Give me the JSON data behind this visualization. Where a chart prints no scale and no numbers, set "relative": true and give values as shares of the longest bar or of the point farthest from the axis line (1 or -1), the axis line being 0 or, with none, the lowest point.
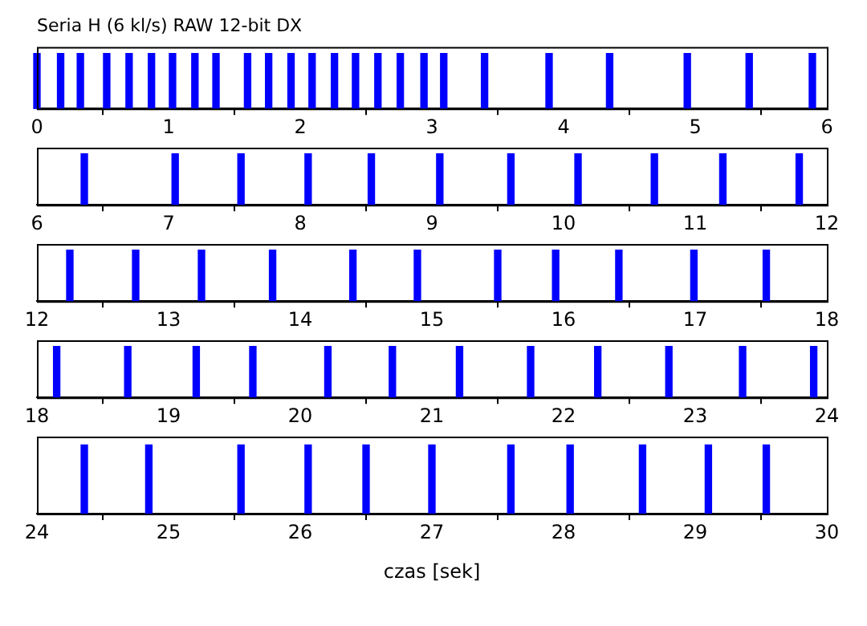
{
  "chart_data": [
    {
      "type": "bar",
      "title": "Seria H (6 kl/s) RAW 12-bit DX",
      "relative": true,
      "color": "#0000ff",
      "xlim": [
        0,
        6
      ],
      "xticks": [
        0,
        1,
        2,
        3,
        4,
        5,
        6
      ],
      "x": [
        0.0,
        0.18,
        0.33,
        0.53,
        0.7,
        0.87,
        1.03,
        1.2,
        1.36,
        1.6,
        1.76,
        1.93,
        2.09,
        2.26,
        2.42,
        2.59,
        2.76,
        2.94,
        3.09,
        3.4,
        3.89,
        4.35,
        4.94,
        5.41,
        5.89
      ],
      "values": [
        1,
        1,
        1,
        1,
        1,
        1,
        1,
        1,
        1,
        1,
        1,
        1,
        1,
        1,
        1,
        1,
        1,
        1,
        1,
        1,
        1,
        1,
        1,
        1,
        1
      ]
    },
    {
      "type": "bar",
      "relative": true,
      "color": "#0000ff",
      "xlim": [
        6,
        12
      ],
      "xticks": [
        6,
        7,
        8,
        9,
        10,
        11,
        12
      ],
      "x": [
        6.36,
        7.05,
        7.55,
        8.06,
        8.54,
        9.06,
        9.6,
        10.11,
        10.69,
        11.21,
        11.79
      ],
      "values": [
        1,
        1,
        1,
        1,
        1,
        1,
        1,
        1,
        1,
        1,
        1
      ]
    },
    {
      "type": "bar",
      "relative": true,
      "color": "#0000ff",
      "xlim": [
        12,
        18
      ],
      "xticks": [
        12,
        13,
        14,
        15,
        16,
        17,
        18
      ],
      "x": [
        12.25,
        12.75,
        13.25,
        13.79,
        14.4,
        14.89,
        15.5,
        15.94,
        16.42,
        16.99,
        17.54
      ],
      "values": [
        1,
        1,
        1,
        1,
        1,
        1,
        1,
        1,
        1,
        1,
        1
      ]
    },
    {
      "type": "bar",
      "relative": true,
      "color": "#0000ff",
      "xlim": [
        18,
        24
      ],
      "xticks": [
        18,
        19,
        20,
        21,
        22,
        23,
        24
      ],
      "x": [
        18.15,
        18.69,
        19.21,
        19.64,
        20.21,
        20.7,
        21.21,
        21.75,
        22.26,
        22.8,
        23.36,
        23.9
      ],
      "values": [
        1,
        1,
        1,
        1,
        1,
        1,
        1,
        1,
        1,
        1,
        1,
        1
      ]
    },
    {
      "type": "bar",
      "relative": true,
      "color": "#0000ff",
      "xlim": [
        24,
        30
      ],
      "xticks": [
        24,
        25,
        26,
        27,
        28,
        29,
        30
      ],
      "xlabel": "czas [sek]",
      "x": [
        24.36,
        24.85,
        25.55,
        26.06,
        26.5,
        27.0,
        27.6,
        28.05,
        28.6,
        29.1,
        29.54
      ],
      "values": [
        1,
        1,
        1,
        1,
        1,
        1,
        1,
        1,
        1,
        1,
        1
      ]
    }
  ]
}
